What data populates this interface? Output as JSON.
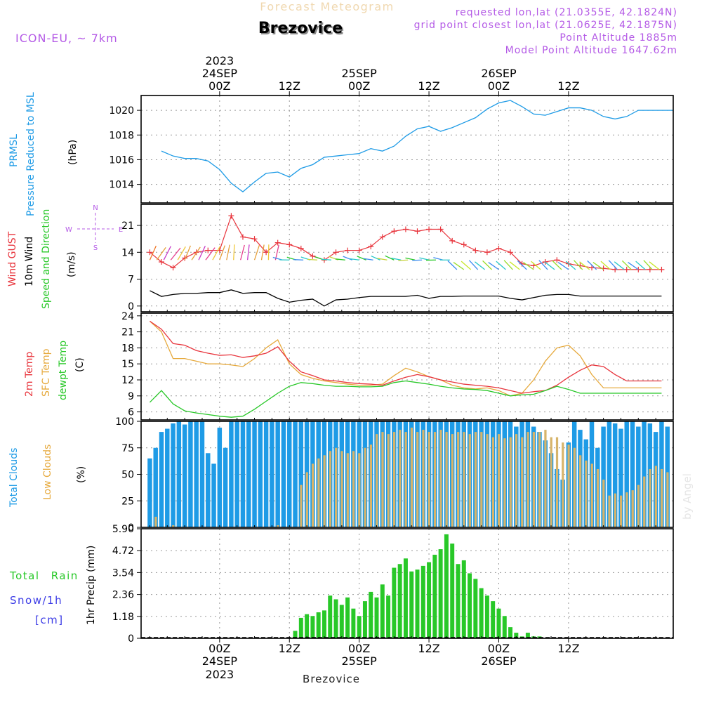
{
  "header": {
    "super_title": "Forecast Meteogram",
    "location": "Brezovice",
    "model": "ICON-EU, ~ 7km",
    "requested": "requested lon,lat (21.0355E, 42.1824N)",
    "grid": "grid point closest lon,lat (21.0625E, 42.1875N)",
    "altitude": "Point Altitude 1885m",
    "model_altitude": "Model Point Altitude 1647.62m",
    "watermark": "by Angel",
    "footer_location": "Brezovice"
  },
  "time_axis": {
    "top_labels": [
      {
        "line1": "2023",
        "line2": "24SEP",
        "line3": "00Z"
      },
      {
        "line1": "",
        "line2": "",
        "line3": "12Z"
      },
      {
        "line1": "",
        "line2": "25SEP",
        "line3": "00Z"
      },
      {
        "line1": "",
        "line2": "",
        "line3": "12Z"
      },
      {
        "line1": "",
        "line2": "26SEP",
        "line3": "00Z"
      },
      {
        "line1": "",
        "line2": "",
        "line3": "12Z"
      }
    ],
    "bottom_labels": [
      {
        "line1": "00Z",
        "line2": "24SEP",
        "line3": "2023"
      },
      {
        "line1": "12Z",
        "line2": "",
        "line3": ""
      },
      {
        "line1": "00Z",
        "line2": "25SEP",
        "line3": ""
      },
      {
        "line1": "12Z",
        "line2": "",
        "line3": ""
      },
      {
        "line1": "00Z",
        "line2": "26SEP",
        "line3": ""
      },
      {
        "line1": "12Z",
        "line2": "",
        "line3": ""
      }
    ]
  },
  "panels": {
    "pressure": {
      "label1": "PRMSL",
      "label2": "Pressure Reduced to MSL",
      "unit": "(hPa)"
    },
    "wind": {
      "label1": "Wind GUST",
      "label2": "10m Wind",
      "label3": "Speed and Direction",
      "unit": "(m/s)",
      "compass_n": "N",
      "compass_s": "S",
      "compass_w": "W",
      "compass_e": "E"
    },
    "temp": {
      "label1": "2m Temp",
      "label2": "SFC Temp",
      "label3": "dewpt Temp",
      "unit": "(C)"
    },
    "clouds": {
      "label1": "Total Clouds",
      "label2": "Low Clouds",
      "unit": "(%)"
    },
    "precip": {
      "label1": "Total Rain",
      "label2": "Snow/1h",
      "label3": "[cm]",
      "unit": "1hr Precip (mm)"
    }
  },
  "colors": {
    "pressure": "#1e9be6",
    "gust": "#e8343c",
    "wind_speed": "#000000",
    "temp2m": "#e8343c",
    "sfc_temp": "#e6a93c",
    "dewpt": "#28c828",
    "total_clouds": "#1e9be6",
    "low_clouds": "#d7b46a",
    "rain": "#28c828",
    "purple": "#b45ae6",
    "snow_label": "#3c3ce6"
  },
  "chart_data": [
    {
      "type": "line",
      "title": "PRMSL",
      "ylabel": "(hPa)",
      "x_hours": [
        -10,
        -8,
        -6,
        -4,
        -2,
        0,
        2,
        4,
        6,
        8,
        10,
        12,
        14,
        16,
        18,
        20,
        22,
        24,
        26,
        28,
        30,
        32,
        34,
        36,
        38,
        40,
        42,
        44,
        46,
        48,
        50,
        52,
        54,
        56,
        58,
        60,
        62,
        64,
        66,
        68,
        70,
        72,
        74,
        76,
        78
      ],
      "values": [
        1016.7,
        1016.3,
        1016.1,
        1016.1,
        1015.9,
        1015.2,
        1014.1,
        1013.4,
        1014.2,
        1014.9,
        1015.0,
        1014.6,
        1015.3,
        1015.6,
        1016.2,
        1016.3,
        1016.4,
        1016.5,
        1016.9,
        1016.7,
        1017.1,
        1017.9,
        1018.5,
        1018.7,
        1018.3,
        1018.6,
        1019.0,
        1019.4,
        1020.1,
        1020.6,
        1020.8,
        1020.3,
        1019.7,
        1019.6,
        1019.9,
        1020.2,
        1020.2,
        1020.0,
        1019.5,
        1019.3,
        1019.5,
        1020.0,
        1020.0,
        1020.0,
        1020.0
      ],
      "yticks": [
        1014,
        1016,
        1018,
        1020
      ],
      "ylim": [
        1012.5,
        1021.2
      ]
    },
    {
      "type": "line",
      "title": "Wind GUST / 10m Wind Speed",
      "ylabel": "(m/s)",
      "x_hours": [
        -12,
        -10,
        -8,
        -6,
        -4,
        -2,
        0,
        2,
        4,
        6,
        8,
        10,
        12,
        14,
        16,
        18,
        20,
        22,
        24,
        26,
        28,
        30,
        32,
        34,
        36,
        38,
        40,
        42,
        44,
        46,
        48,
        50,
        52,
        54,
        56,
        58,
        60,
        62,
        64,
        66,
        68,
        70,
        72,
        74,
        76
      ],
      "gust": [
        14.0,
        11.5,
        10.0,
        12.5,
        14.0,
        14.5,
        14.5,
        23.5,
        18.0,
        17.5,
        14.0,
        16.5,
        16.0,
        15.0,
        13.0,
        12.0,
        14.0,
        14.5,
        14.5,
        15.5,
        18.0,
        19.5,
        20.0,
        19.5,
        20.0,
        20.0,
        17.0,
        16.0,
        14.5,
        14.0,
        15.0,
        14.0,
        11.0,
        10.5,
        11.5,
        12.0,
        11.0,
        10.5,
        10.0,
        9.8,
        9.5,
        9.5,
        9.5,
        9.5,
        9.5
      ],
      "speed": [
        4.0,
        2.5,
        3.0,
        3.3,
        3.3,
        3.5,
        3.5,
        4.2,
        3.3,
        3.5,
        3.5,
        2.0,
        1.0,
        1.5,
        1.8,
        0.0,
        1.6,
        1.8,
        2.2,
        2.5,
        2.5,
        2.5,
        2.5,
        2.8,
        2.0,
        2.5,
        2.5,
        2.6,
        2.6,
        2.6,
        2.6,
        2.0,
        1.6,
        2.2,
        2.8,
        3.0,
        3.0,
        2.6,
        2.6,
        2.6,
        2.6,
        2.6,
        2.6,
        2.6,
        2.6
      ],
      "yticks": [
        0,
        7,
        14,
        21
      ],
      "ylim": [
        -1.5,
        26.5
      ]
    },
    {
      "type": "line",
      "title": "2m Temp / SFC Temp / dewpt Temp",
      "ylabel": "(C)",
      "x_hours": [
        -12,
        -10,
        -8,
        -6,
        -4,
        -2,
        0,
        2,
        4,
        6,
        8,
        10,
        12,
        14,
        16,
        18,
        20,
        22,
        24,
        26,
        28,
        30,
        32,
        34,
        36,
        38,
        40,
        42,
        44,
        46,
        48,
        50,
        52,
        54,
        56,
        58,
        60,
        62,
        64,
        66,
        68,
        70,
        72,
        74,
        76
      ],
      "temp2m": [
        23.0,
        21.5,
        18.8,
        18.5,
        17.5,
        17.0,
        16.6,
        16.7,
        16.2,
        16.5,
        17.0,
        18.2,
        15.5,
        13.5,
        12.8,
        12.0,
        11.8,
        11.5,
        11.3,
        11.2,
        11.0,
        11.8,
        12.5,
        13.0,
        12.6,
        12.0,
        11.6,
        11.2,
        11.0,
        10.8,
        10.5,
        10.0,
        9.5,
        9.8,
        10.0,
        11.0,
        12.5,
        13.8,
        14.8,
        14.5,
        13.0,
        11.8,
        11.8,
        11.8,
        11.8
      ],
      "sfc_temp": [
        23.0,
        21.0,
        16.0,
        16.0,
        15.5,
        15.0,
        15.0,
        14.8,
        14.5,
        16.0,
        18.0,
        19.5,
        15.0,
        13.0,
        12.3,
        11.8,
        11.5,
        11.2,
        11.0,
        11.0,
        11.2,
        12.8,
        14.2,
        13.5,
        12.6,
        12.0,
        11.0,
        10.5,
        10.3,
        10.5,
        10.0,
        9.0,
        9.5,
        12.0,
        15.5,
        18.0,
        18.5,
        16.5,
        13.0,
        10.5,
        10.5,
        10.5,
        10.5,
        10.5,
        10.5
      ],
      "dewpt": [
        7.8,
        10.0,
        7.5,
        6.2,
        5.8,
        5.5,
        5.2,
        5.0,
        5.2,
        6.5,
        8.0,
        9.5,
        10.8,
        11.5,
        11.3,
        11.0,
        10.8,
        10.8,
        10.7,
        10.7,
        10.8,
        11.5,
        11.8,
        11.5,
        11.2,
        10.8,
        10.5,
        10.3,
        10.2,
        10.0,
        9.5,
        9.0,
        9.2,
        9.3,
        10.0,
        10.8,
        10.2,
        9.5,
        9.5,
        9.5,
        9.5,
        9.5,
        9.5,
        9.5,
        9.5
      ],
      "yticks": [
        6,
        9,
        12,
        15,
        18,
        21,
        24
      ],
      "ylim": [
        4.5,
        24.5
      ]
    },
    {
      "type": "bar",
      "title": "Total Clouds / Low Clouds",
      "ylabel": "(%)",
      "x_hours": [
        -12,
        -11,
        -10,
        -9,
        -8,
        -7,
        -6,
        -5,
        -4,
        -3,
        -2,
        -1,
        0,
        1,
        2,
        3,
        4,
        5,
        6,
        7,
        8,
        9,
        10,
        11,
        12,
        13,
        14,
        15,
        16,
        17,
        18,
        19,
        20,
        21,
        22,
        23,
        24,
        25,
        26,
        27,
        28,
        29,
        30,
        31,
        32,
        33,
        34,
        35,
        36,
        37,
        38,
        39,
        40,
        41,
        42,
        43,
        44,
        45,
        46,
        47,
        48,
        49,
        50,
        51,
        52,
        53,
        54,
        55,
        56,
        57,
        58,
        59,
        60,
        61,
        62,
        63,
        64,
        65,
        66,
        67,
        68,
        69,
        70,
        71,
        72,
        73,
        74,
        75,
        76,
        77
      ],
      "total": [
        65,
        75,
        90,
        93,
        98,
        100,
        97,
        100,
        100,
        100,
        70,
        60,
        94,
        75,
        100,
        100,
        100,
        100,
        100,
        100,
        100,
        100,
        100,
        100,
        100,
        100,
        100,
        100,
        100,
        100,
        100,
        100,
        100,
        100,
        100,
        100,
        100,
        100,
        100,
        100,
        100,
        100,
        100,
        100,
        100,
        100,
        100,
        100,
        100,
        100,
        100,
        100,
        100,
        100,
        100,
        100,
        100,
        100,
        100,
        100,
        100,
        100,
        100,
        95,
        100,
        100,
        95,
        90,
        82,
        70,
        55,
        45,
        80,
        100,
        92,
        83,
        100,
        75,
        95,
        100,
        98,
        93,
        100,
        100,
        95,
        100,
        98,
        90,
        100,
        95
      ],
      "low": [
        0,
        10,
        0,
        0,
        2,
        0,
        0,
        0,
        0,
        0,
        0,
        0,
        0,
        0,
        0,
        0,
        0,
        0,
        0,
        0,
        0,
        0,
        2,
        0,
        0,
        0,
        40,
        52,
        60,
        65,
        68,
        72,
        75,
        72,
        70,
        72,
        70,
        75,
        78,
        88,
        90,
        88,
        90,
        92,
        90,
        94,
        90,
        92,
        90,
        90,
        92,
        90,
        88,
        90,
        90,
        88,
        90,
        90,
        88,
        85,
        88,
        84,
        85,
        88,
        85,
        90,
        90,
        90,
        92,
        85,
        85,
        80,
        78,
        75,
        68,
        63,
        60,
        55,
        45,
        30,
        32,
        30,
        33,
        35,
        40,
        48,
        55,
        58,
        55,
        52
      ]
    },
    {
      "type": "bar",
      "title": "Total Rain",
      "ylabel": "1hr Precip (mm)",
      "x_hours": [
        -12,
        -11,
        -10,
        -9,
        -8,
        -7,
        -6,
        -5,
        -4,
        -3,
        -2,
        -1,
        0,
        1,
        2,
        3,
        4,
        5,
        6,
        7,
        8,
        9,
        10,
        11,
        12,
        13,
        14,
        15,
        16,
        17,
        18,
        19,
        20,
        21,
        22,
        23,
        24,
        25,
        26,
        27,
        28,
        29,
        30,
        31,
        32,
        33,
        34,
        35,
        36,
        37,
        38,
        39,
        40,
        41,
        42,
        43,
        44,
        45,
        46,
        47,
        48,
        49,
        50,
        51,
        52,
        53,
        54,
        55,
        56,
        57,
        58,
        59,
        60,
        61,
        62,
        63,
        64,
        65,
        66,
        67,
        68,
        69,
        70,
        71,
        72,
        73,
        74,
        75,
        76,
        77
      ],
      "values": [
        0,
        0,
        0,
        0,
        0,
        0,
        0,
        0,
        0,
        0,
        0,
        0,
        0,
        0,
        0,
        0,
        0,
        0,
        0,
        0,
        0,
        0,
        0,
        0,
        0.05,
        0.4,
        1.1,
        1.3,
        1.2,
        1.4,
        1.5,
        2.3,
        2.1,
        1.8,
        2.2,
        1.6,
        1.2,
        2.0,
        2.5,
        2.2,
        2.9,
        2.3,
        3.8,
        4.0,
        4.3,
        3.6,
        3.7,
        3.9,
        4.1,
        4.5,
        4.8,
        5.6,
        5.1,
        4.0,
        4.2,
        3.5,
        3.2,
        2.7,
        2.3,
        2.0,
        1.6,
        1.2,
        0.6,
        0.3,
        0.1,
        0.3,
        0.1,
        0.1,
        0,
        0,
        0,
        0,
        0,
        0,
        0,
        0,
        0,
        0,
        0,
        0,
        0,
        0,
        0,
        0,
        0,
        0,
        0,
        0,
        0,
        0
      ],
      "yticks": [
        0,
        1.18,
        2.36,
        3.54,
        4.72,
        5.9
      ],
      "ylim": [
        0,
        5.9
      ]
    }
  ]
}
